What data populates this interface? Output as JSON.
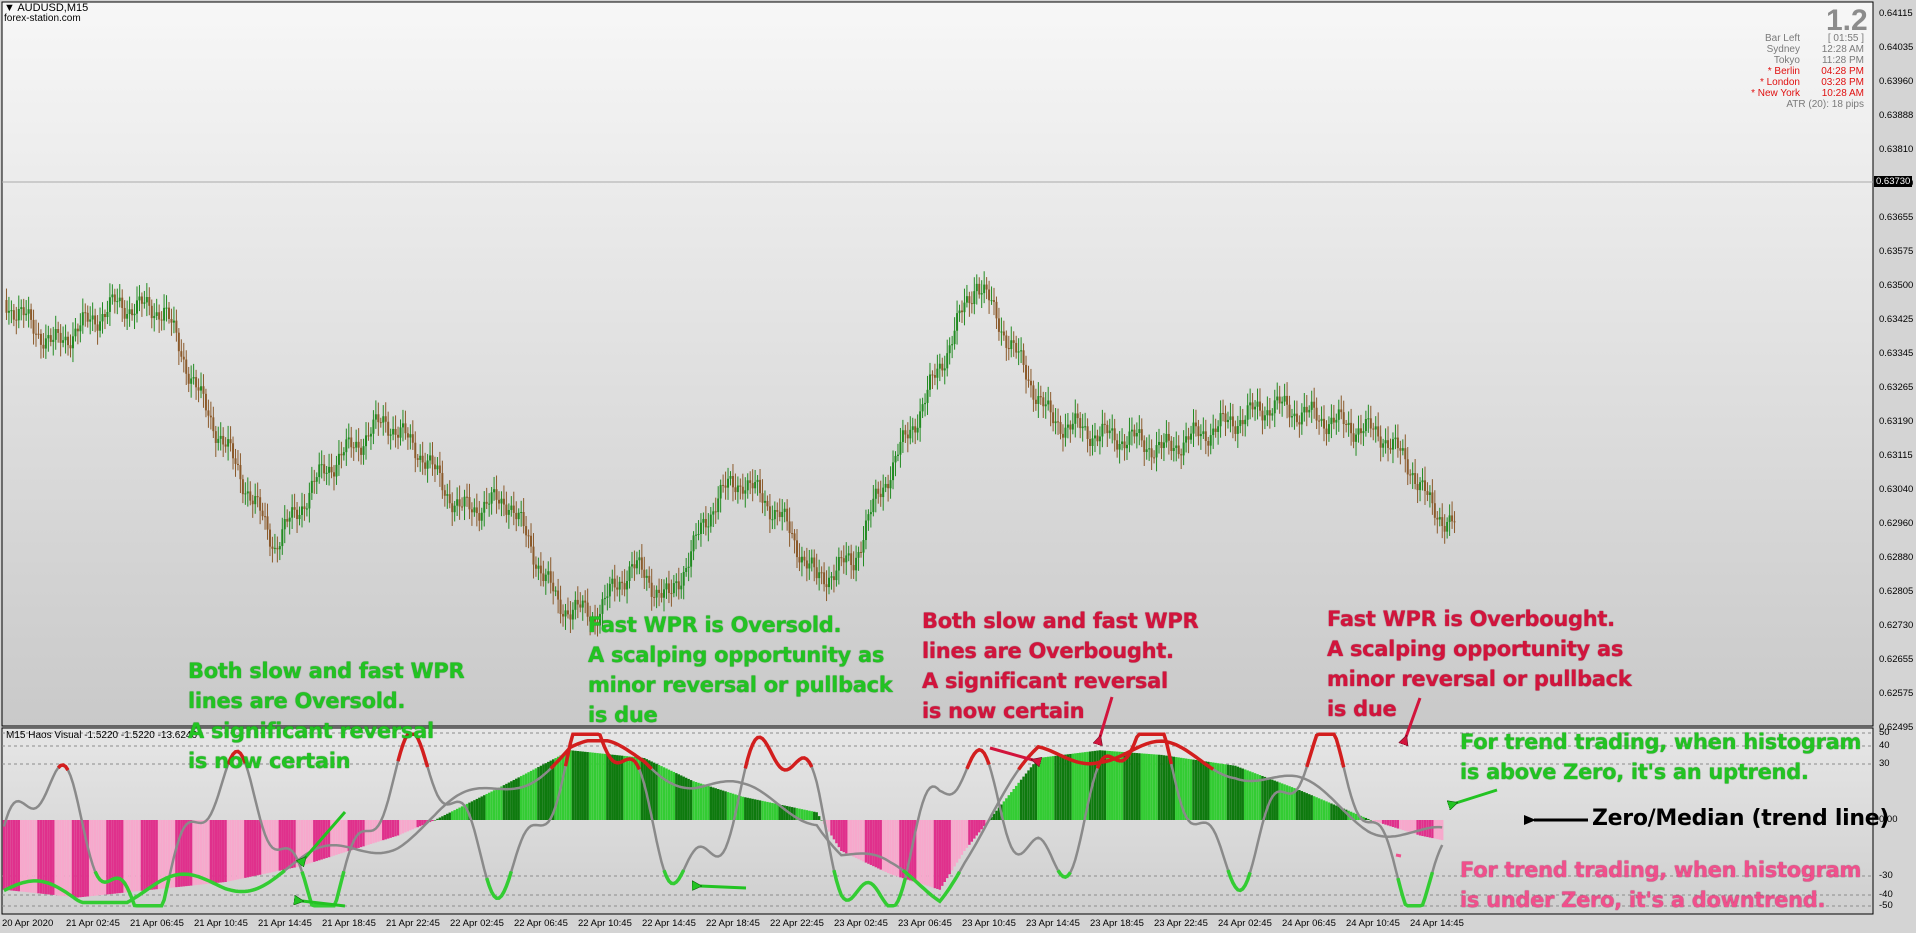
{
  "chart": {
    "symbol": "AUDUSD,M15",
    "site": "forex-station.com",
    "spread": "1.2",
    "info_panel": [
      {
        "label": "Bar Left",
        "value": "[ 01:55 ]",
        "highlight": false
      },
      {
        "label": "Sydney",
        "value": "12:28 AM",
        "highlight": false
      },
      {
        "label": "Tokyo",
        "value": "11:28 PM",
        "highlight": false
      },
      {
        "label": "* Berlin",
        "value": "04:28 PM",
        "highlight": true
      },
      {
        "label": "* London",
        "value": "03:28 PM",
        "highlight": true
      },
      {
        "label": "* New York",
        "value": "10:28 AM",
        "highlight": true
      }
    ],
    "atr": "ATR (20): 18 pips",
    "current_price": "0.63730",
    "price_ticks": [
      "0.64115",
      "0.64035",
      "0.63960",
      "0.63888",
      "0.63810",
      "0.63730",
      "0.63655",
      "0.63575",
      "0.63500",
      "0.63425",
      "0.63345",
      "0.63265",
      "0.63190",
      "0.63115",
      "0.63040",
      "0.62960",
      "0.62880",
      "0.62805",
      "0.62730",
      "0.62655",
      "0.62575",
      "0.62495"
    ],
    "indicator_label": "M15 Haos Visual -1.5220 -1.5220 -13.6246",
    "indicator_ticks": [
      "50",
      "40",
      "30",
      "0.00",
      "-30",
      "-40",
      "-50"
    ],
    "time_ticks": [
      "20 Apr 2020",
      "21 Apr 02:45",
      "21 Apr 06:45",
      "21 Apr 10:45",
      "21 Apr 14:45",
      "21 Apr 18:45",
      "21 Apr 22:45",
      "22 Apr 02:45",
      "22 Apr 06:45",
      "22 Apr 10:45",
      "22 Apr 14:45",
      "22 Apr 18:45",
      "22 Apr 22:45",
      "23 Apr 02:45",
      "23 Apr 06:45",
      "23 Apr 10:45",
      "23 Apr 14:45",
      "23 Apr 18:45",
      "23 Apr 22:45",
      "24 Apr 02:45",
      "24 Apr 06:45",
      "24 Apr 10:45",
      "24 Apr 14:45"
    ],
    "colors": {
      "bull": "#228b22",
      "bear": "#8b5a2b",
      "hist_up_a": "#33cc33",
      "hist_up_b": "#0e7a0e",
      "hist_down_a": "#e0308c",
      "hist_down_b": "#f7a8cc",
      "slow_line": "#8a8a8a",
      "oversold": "#33cc33",
      "overbought": "#d21e1e"
    }
  },
  "annotations": {
    "a1": "Both slow and fast WPR\nlines are Oversold.\nA significant reversal\nis now certain",
    "a2": "Fast WPR is Oversold.\nA scalping opportunity as\nminor reversal or pullback\nis due",
    "a3": "Both slow and fast WPR\nlines are Overbought.\nA significant reversal\nis now certain",
    "a4": "Fast WPR is Overbought.\nA scalping opportunity as\nminor reversal or pullback\nis due",
    "a5": "For trend trading, when histogram\nis above Zero, it's an uptrend.",
    "a6": "Zero/Median (trend line)",
    "a7": "For trend trading, when histogram\nis under Zero, it's a downtrend."
  }
}
